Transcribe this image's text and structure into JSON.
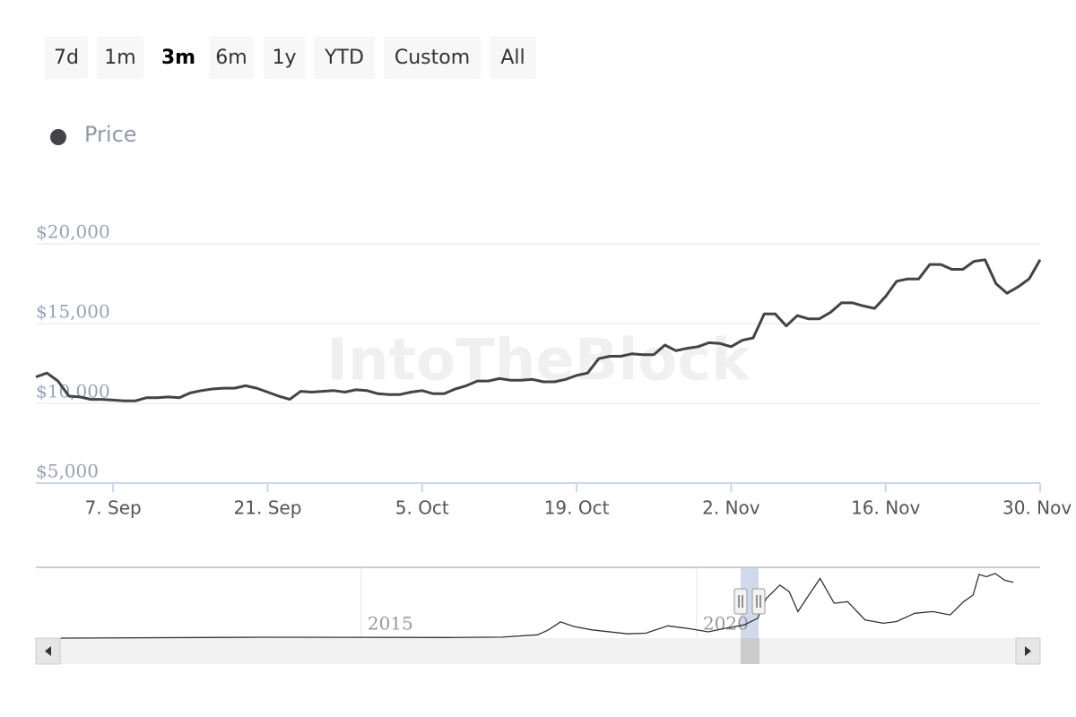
{
  "chart_data": {
    "type": "line",
    "range_buttons": [
      "7d",
      "1m",
      "3m",
      "6m",
      "1y",
      "YTD",
      "Custom",
      "All"
    ],
    "selected_range": "3m",
    "watermark": "IntoTheBlock",
    "ylim": [
      5000,
      20000
    ],
    "yticks": [
      {
        "value": 5000,
        "label": "$5,000"
      },
      {
        "value": 10000,
        "label": "$10,000"
      },
      {
        "value": 15000,
        "label": "$15,000"
      },
      {
        "value": 20000,
        "label": "$20,000"
      }
    ],
    "grid": true,
    "x": [
      "31. Aug",
      "1. Sep",
      "2. Sep",
      "3. Sep",
      "4. Sep",
      "5. Sep",
      "6. Sep",
      "7. Sep",
      "8. Sep",
      "9. Sep",
      "10. Sep",
      "11. Sep",
      "12. Sep",
      "13. Sep",
      "14. Sep",
      "15. Sep",
      "16. Sep",
      "17. Sep",
      "18. Sep",
      "19. Sep",
      "20. Sep",
      "21. Sep",
      "22. Sep",
      "23. Sep",
      "24. Sep",
      "25. Sep",
      "26. Sep",
      "27. Sep",
      "28. Sep",
      "29. Sep",
      "30. Sep",
      "1. Oct",
      "2. Oct",
      "3. Oct",
      "4. Oct",
      "5. Oct",
      "6. Oct",
      "7. Oct",
      "8. Oct",
      "9. Oct",
      "10. Oct",
      "11. Oct",
      "12. Oct",
      "13. Oct",
      "14. Oct",
      "15. Oct",
      "16. Oct",
      "17. Oct",
      "18. Oct",
      "19. Oct",
      "20. Oct",
      "21. Oct",
      "22. Oct",
      "23. Oct",
      "24. Oct",
      "25. Oct",
      "26. Oct",
      "27. Oct",
      "28. Oct",
      "29. Oct",
      "30. Oct",
      "31. Oct",
      "1. Nov",
      "2. Nov",
      "3. Nov",
      "4. Nov",
      "5. Nov",
      "6. Nov",
      "7. Nov",
      "8. Nov",
      "9. Nov",
      "10. Nov",
      "11. Nov",
      "12. Nov",
      "13. Nov",
      "14. Nov",
      "15. Nov",
      "16. Nov",
      "17. Nov",
      "18. Nov",
      "19. Nov",
      "20. Nov",
      "21. Nov",
      "22. Nov",
      "23. Nov",
      "24. Nov",
      "25. Nov",
      "26. Nov",
      "27. Nov",
      "28. Nov",
      "29. Nov",
      "30. Nov"
    ],
    "xticks": [
      "7. Sep",
      "21. Sep",
      "5. Oct",
      "19. Oct",
      "2. Nov",
      "16. Nov",
      "30. Nov"
    ],
    "series": [
      {
        "name": "Price",
        "color": "#434348",
        "values": [
          11650,
          11900,
          11400,
          10450,
          10400,
          10250,
          10250,
          10200,
          10150,
          10150,
          10350,
          10350,
          10400,
          10350,
          10650,
          10800,
          10900,
          10950,
          10950,
          11100,
          10950,
          10700,
          10450,
          10250,
          10750,
          10700,
          10750,
          10800,
          10700,
          10850,
          10800,
          10600,
          10550,
          10550,
          10700,
          10800,
          10600,
          10600,
          10900,
          11100,
          11400,
          11400,
          11550,
          11450,
          11450,
          11500,
          11350,
          11350,
          11500,
          11750,
          11900,
          12800,
          12950,
          12950,
          13100,
          13050,
          13050,
          13650,
          13300,
          13450,
          13550,
          13800,
          13750,
          13550,
          13950,
          14100,
          15600,
          15600,
          14850,
          15500,
          15300,
          15300,
          15700,
          16300,
          16300,
          16100,
          15950,
          16700,
          17650,
          17800,
          17800,
          18700,
          18700,
          18400,
          18400,
          18900,
          19000,
          17500,
          16900,
          17300,
          17800,
          19000
        ]
      }
    ],
    "navigator": {
      "xlim": [
        2010.15,
        2025.12
      ],
      "ylim": [
        0,
        20000
      ],
      "xticks": [
        2015,
        2020
      ],
      "x": [
        2010.52,
        2013.62,
        2016.3,
        2017.1,
        2017.63,
        2017.79,
        2017.97,
        2018.17,
        2018.44,
        2018.97,
        2019.24,
        2019.57,
        2019.91,
        2020.17,
        2020.44,
        2020.71,
        2020.91,
        2021.04,
        2021.24,
        2021.38,
        2021.51,
        2021.64,
        2021.84,
        2022.05,
        2022.25,
        2022.51,
        2022.78,
        2022.98,
        2023.25,
        2023.52,
        2023.78,
        2023.98,
        2024.12,
        2024.21,
        2024.32,
        2024.45,
        2024.59,
        2024.72
      ],
      "values": [
        0,
        270,
        200,
        300,
        1000,
        2500,
        4900,
        3500,
        2500,
        1300,
        1500,
        3700,
        2800,
        1900,
        3000,
        4000,
        6000,
        12000,
        16000,
        14000,
        8000,
        12000,
        18000,
        10500,
        11000,
        5500,
        4500,
        5000,
        7500,
        8000,
        7000,
        11000,
        13000,
        19200,
        18500,
        19500,
        17500,
        16800
      ]
    }
  }
}
